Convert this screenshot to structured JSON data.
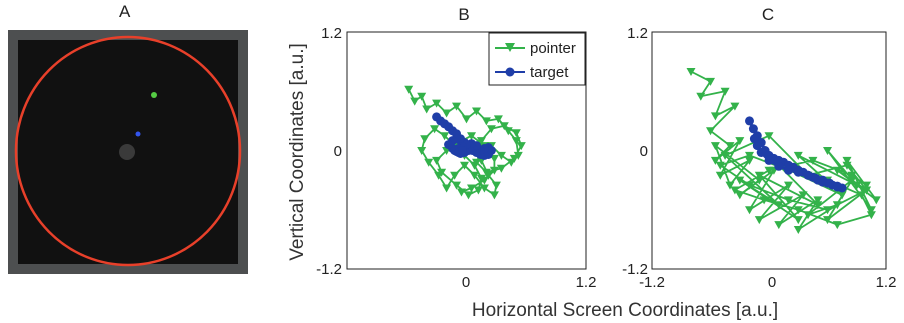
{
  "figure": {
    "xlabel": "Horizontal Screen Coordinates [a.u.]",
    "ylabel": "Vertical Coordinates [a.u.]"
  },
  "panel_a": {
    "label": "A",
    "colors": {
      "frame": "#4d4f50",
      "screen": "#111111",
      "ring": "#e8402a",
      "center_dot": "#3a3a3a"
    },
    "green_dot_color": "#55cc44",
    "blue_dot_color": "#3355ee"
  },
  "legend": {
    "pointer": "pointer",
    "target": "target"
  },
  "colors": {
    "pointer": "#33b24a",
    "target": "#1f3ea8"
  },
  "chart_data": [
    {
      "panel": "B",
      "type": "line",
      "xlim": [
        -1.2,
        1.2
      ],
      "ylim": [
        -1.2,
        1.2
      ],
      "xticks": [
        "0",
        "1.2"
      ],
      "yticks": [
        "1.2",
        "0",
        "-1.2"
      ],
      "legend_position": "top-right",
      "series": [
        {
          "name": "pointer",
          "marker": "triangle-down",
          "x": [
            -0.58,
            -0.52,
            -0.45,
            -0.4,
            -0.3,
            -0.2,
            -0.1,
            0.0,
            0.1,
            0.2,
            0.32,
            0.42,
            0.5,
            0.52,
            0.45,
            0.35,
            0.25,
            0.15,
            0.1,
            0.2,
            0.35,
            0.48,
            0.55,
            0.5,
            0.38,
            0.25,
            0.15,
            0.15,
            0.22,
            0.3,
            0.28,
            0.18,
            0.08,
            -0.02,
            -0.12,
            -0.2,
            -0.28,
            -0.38,
            -0.45,
            -0.42,
            -0.32,
            -0.22,
            -0.12,
            -0.02,
            0.08,
            0.15,
            0.12,
            0.02,
            -0.1,
            -0.25,
            -0.3,
            -0.2,
            -0.08,
            0.05,
            0.18,
            0.28,
            0.28,
            0.18,
            0.05,
            -0.05
          ],
          "y": [
            0.62,
            0.5,
            0.55,
            0.42,
            0.48,
            0.38,
            0.45,
            0.32,
            0.4,
            0.3,
            0.32,
            0.2,
            0.1,
            -0.05,
            -0.12,
            -0.05,
            0.05,
            0.0,
            -0.12,
            -0.22,
            -0.18,
            -0.08,
            0.05,
            0.18,
            0.25,
            0.22,
            0.1,
            -0.1,
            -0.25,
            -0.35,
            -0.45,
            -0.38,
            -0.25,
            -0.15,
            -0.25,
            -0.38,
            -0.25,
            -0.12,
            0.0,
            0.12,
            0.22,
            0.15,
            0.05,
            -0.05,
            -0.15,
            -0.28,
            -0.4,
            -0.45,
            -0.35,
            -0.22,
            -0.1,
            0.0,
            0.08,
            0.15,
            0.05,
            -0.08,
            -0.2,
            -0.3,
            -0.38,
            -0.42
          ]
        },
        {
          "name": "target",
          "marker": "circle",
          "x": [
            -0.3,
            -0.26,
            -0.22,
            -0.18,
            -0.14,
            -0.1,
            -0.06,
            -0.02,
            0.02,
            0.06,
            0.1,
            0.14,
            0.18,
            0.22,
            0.25,
            0.22,
            0.18,
            0.14,
            0.1,
            0.06,
            0.02,
            -0.02,
            -0.06,
            -0.1,
            -0.14,
            -0.18,
            -0.14,
            -0.1,
            -0.06,
            -0.02,
            0.02,
            0.06,
            0.1,
            0.05,
            0.0,
            -0.04,
            -0.08,
            -0.12,
            -0.08,
            -0.04
          ],
          "y": [
            0.34,
            0.3,
            0.27,
            0.24,
            0.2,
            0.17,
            0.12,
            0.08,
            0.04,
            0.0,
            -0.02,
            -0.04,
            -0.05,
            -0.04,
            0.0,
            0.03,
            0.02,
            0.0,
            -0.01,
            0.02,
            0.05,
            0.08,
            0.1,
            0.12,
            0.1,
            0.06,
            0.02,
            -0.01,
            -0.03,
            -0.02,
            0.0,
            0.03,
            0.05,
            0.07,
            0.06,
            0.04,
            0.02,
            0.0,
            -0.02,
            0.0
          ]
        }
      ]
    },
    {
      "panel": "C",
      "type": "line",
      "xlim": [
        -1.2,
        1.2
      ],
      "ylim": [
        -1.2,
        1.2
      ],
      "xticks": [
        "-1.2",
        "0",
        "1.2"
      ],
      "yticks": [
        "1.2",
        "0",
        "-1.2"
      ],
      "series": [
        {
          "name": "pointer",
          "marker": "triangle-down",
          "x": [
            -0.8,
            -0.6,
            -0.7,
            -0.45,
            -0.55,
            -0.35,
            -0.6,
            -0.4,
            -0.55,
            -0.3,
            -0.5,
            -0.2,
            -0.4,
            -0.55,
            -0.1,
            -0.3,
            0.05,
            -0.2,
            0.2,
            -0.1,
            0.35,
            0.1,
            0.5,
            0.3,
            0.7,
            0.4,
            0.85,
            0.6,
            1.0,
            0.7,
            1.1,
            0.8,
            1.05,
            0.6,
            0.9,
            0.3,
            0.75,
            0.1,
            0.5,
            -0.1,
            0.3,
            -0.3,
            0.1,
            -0.45,
            0.0,
            0.4,
            0.8,
            1.0,
            0.6,
            0.2,
            -0.2,
            -0.5,
            -0.2,
            0.2,
            0.6,
            0.95,
            1.05,
            0.7,
            0.3,
            -0.05,
            -0.35,
            0.0,
            0.45,
            0.85,
            1.0
          ],
          "y": [
            0.8,
            0.7,
            0.55,
            0.6,
            0.35,
            0.45,
            0.2,
            0.05,
            -0.1,
            0.1,
            -0.25,
            -0.1,
            -0.35,
            0.05,
            -0.3,
            -0.45,
            -0.2,
            -0.6,
            -0.35,
            -0.7,
            -0.45,
            -0.75,
            -0.5,
            -0.8,
            -0.55,
            -0.65,
            -0.3,
            -0.7,
            -0.4,
            -0.2,
            -0.5,
            -0.1,
            -0.6,
            0.0,
            -0.35,
            -0.05,
            -0.45,
            -0.15,
            -0.55,
            -0.25,
            -0.7,
            -0.3,
            -0.55,
            -0.05,
            0.15,
            -0.25,
            -0.15,
            -0.4,
            -0.6,
            -0.5,
            -0.35,
            -0.15,
            -0.05,
            -0.2,
            -0.3,
            -0.45,
            -0.65,
            -0.75,
            -0.6,
            -0.5,
            -0.4,
            -0.2,
            -0.1,
            -0.25,
            -0.35
          ]
        },
        {
          "name": "target",
          "marker": "circle",
          "x": [
            -0.2,
            -0.16,
            -0.12,
            -0.08,
            -0.04,
            0.0,
            0.05,
            0.1,
            0.15,
            0.2,
            0.25,
            0.3,
            0.35,
            0.4,
            0.45,
            0.5,
            0.55,
            0.6,
            0.65,
            0.7,
            0.75,
            0.7,
            0.62,
            0.55,
            0.48,
            0.4,
            0.3,
            0.2,
            0.1,
            0.0,
            -0.08,
            -0.12,
            -0.15
          ],
          "y": [
            0.3,
            0.22,
            0.15,
            0.08,
            0.0,
            -0.05,
            -0.08,
            -0.1,
            -0.12,
            -0.15,
            -0.17,
            -0.2,
            -0.22,
            -0.25,
            -0.27,
            -0.3,
            -0.32,
            -0.33,
            -0.35,
            -0.37,
            -0.38,
            -0.36,
            -0.33,
            -0.3,
            -0.28,
            -0.25,
            -0.22,
            -0.2,
            -0.16,
            -0.1,
            -0.02,
            0.05,
            0.12
          ]
        }
      ]
    }
  ]
}
